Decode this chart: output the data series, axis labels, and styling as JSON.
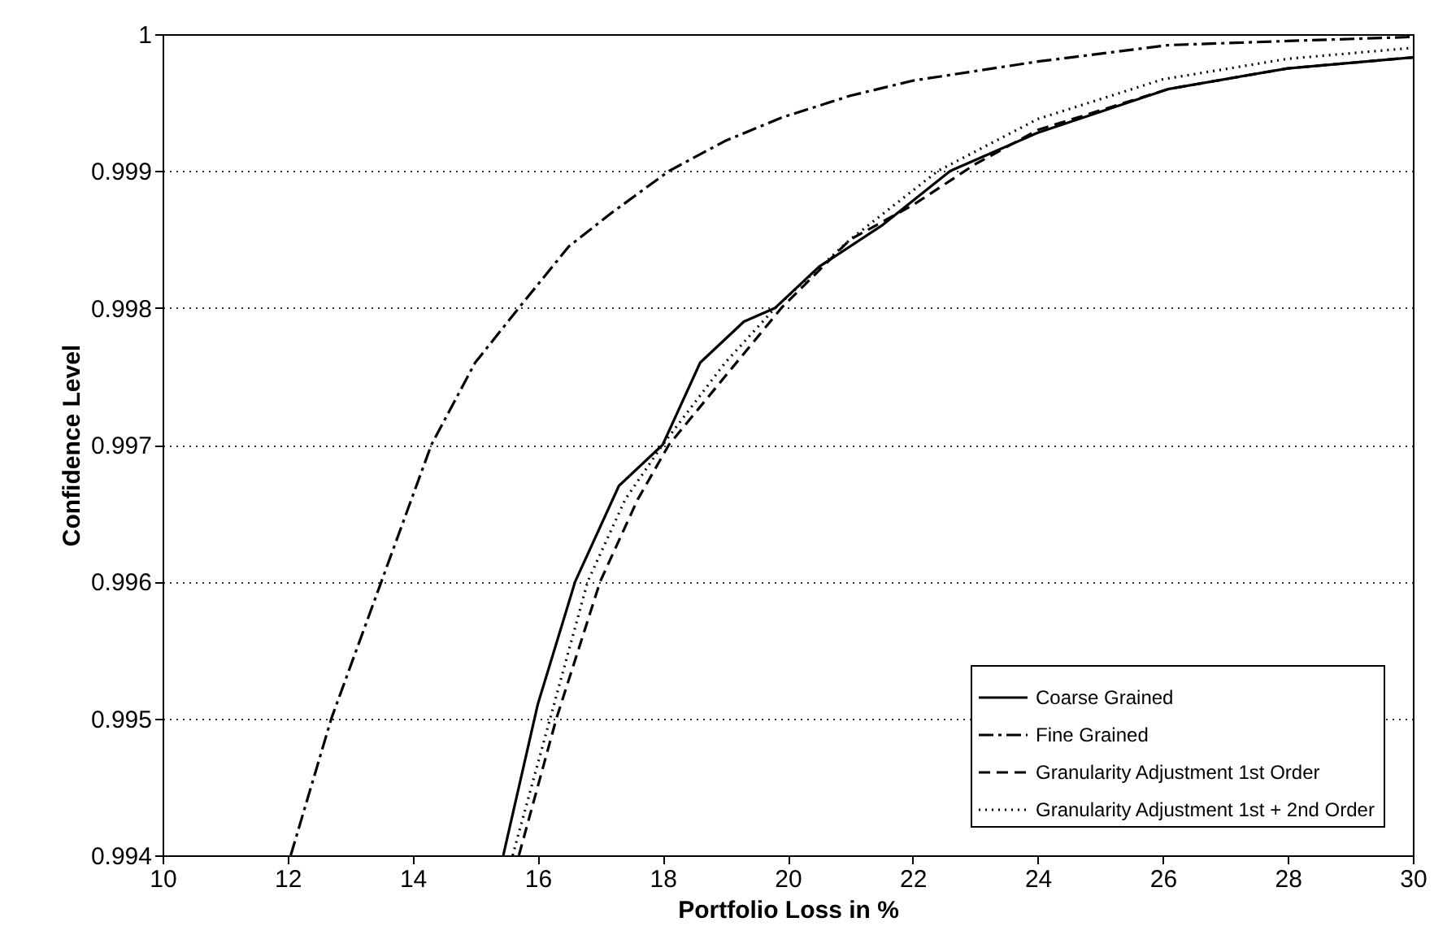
{
  "chart_data": {
    "type": "line",
    "xlabel": "Portfolio Loss in %",
    "ylabel": "Confidence Level",
    "xlim": [
      10,
      30
    ],
    "xticks": [
      10,
      12,
      14,
      16,
      18,
      20,
      22,
      24,
      26,
      28,
      30
    ],
    "ylim": [
      0.994,
      1
    ],
    "yticks": [
      0.994,
      0.995,
      0.996,
      0.997,
      0.998,
      0.999,
      1
    ],
    "grid": "y",
    "legend": "bottom right",
    "marker": "none",
    "series": [
      {
        "name": "Coarse Grained",
        "color": "#000000",
        "line_style": "solid",
        "x": [
          15.45,
          16.0,
          16.6,
          17.3,
          18.0,
          18.6,
          19.3,
          19.8,
          20.5,
          21.5,
          22.6,
          24,
          26.1,
          28,
          30
        ],
        "values": [
          0.994,
          0.9951,
          0.996,
          0.9967,
          0.997,
          0.9976,
          0.9979,
          0.998,
          0.9983,
          0.9986,
          0.999,
          0.99928,
          0.9996,
          0.99975,
          0.99983
        ]
      },
      {
        "name": "Fine Grained",
        "color": "#000000",
        "line_style": "dashdot",
        "x": [
          12.05,
          12.7,
          13.5,
          14.3,
          15.0,
          15.7,
          16.5,
          17.2,
          18.1,
          19.0,
          19.9,
          21.0,
          22.0,
          24.0,
          26.1,
          28,
          30
        ],
        "values": [
          0.994,
          0.995,
          0.996,
          0.997,
          0.9976,
          0.998,
          0.99845,
          0.9987,
          0.999,
          0.99922,
          0.99939,
          0.99955,
          0.99966,
          0.9998,
          0.99992,
          0.99995,
          0.99998
        ]
      },
      {
        "name": "Granularity Adjustment 1st Order",
        "color": "#000000",
        "line_style": "dashed",
        "x": [
          15.7,
          16.3,
          17.0,
          17.6,
          18.1,
          19.0,
          19.9,
          21.0,
          22.0,
          23.0,
          24,
          26.1,
          28,
          30
        ],
        "values": [
          0.994,
          0.995,
          0.996,
          0.9966,
          0.997,
          0.9975,
          0.998,
          0.9985,
          0.99875,
          0.99905,
          0.9993,
          0.9996,
          0.99975,
          0.99983
        ]
      },
      {
        "name": "Granularity Adjustment 1st + 2nd Order",
        "color": "#000000",
        "line_style": "dotted",
        "x": [
          15.6,
          16.2,
          16.8,
          17.4,
          18.0,
          19.0,
          19.8,
          21.0,
          22.4,
          24,
          26,
          28,
          30
        ],
        "values": [
          0.994,
          0.995,
          0.996,
          0.9966,
          0.997,
          0.9976,
          0.998,
          0.9985,
          0.999,
          0.99938,
          0.99967,
          0.99982,
          0.9999
        ]
      }
    ]
  }
}
